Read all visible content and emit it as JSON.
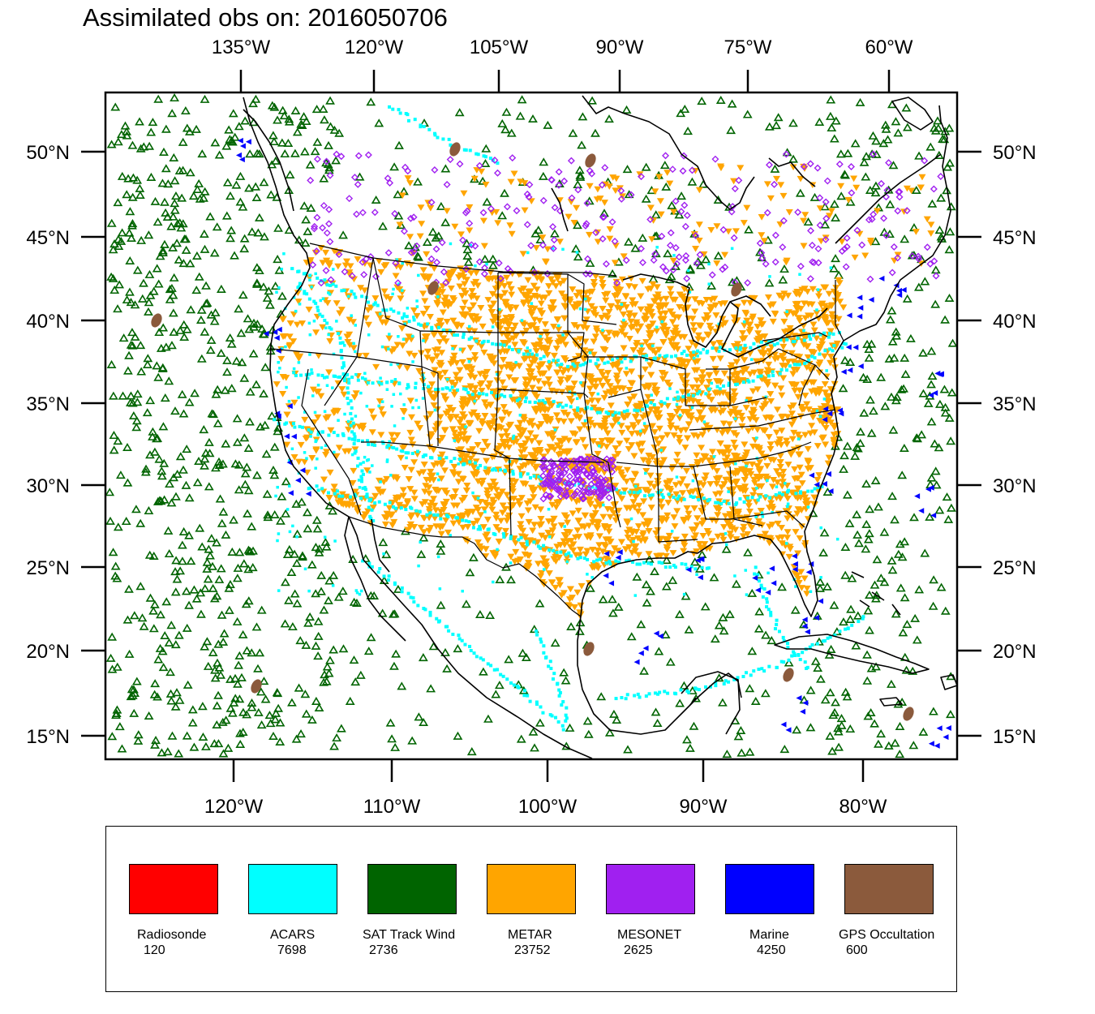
{
  "title": "Assimilated obs on: 2016050706",
  "axes": {
    "top_lon_labels": [
      "135°W",
      "120°W",
      "105°W",
      "90°W",
      "75°W",
      "60°W"
    ],
    "bottom_lon_labels": [
      "120°W",
      "110°W",
      "100°W",
      "90°W",
      "80°W"
    ],
    "lat_labels": [
      "50°N",
      "45°N",
      "40°N",
      "35°N",
      "30°N",
      "25°N",
      "20°N",
      "15°N"
    ]
  },
  "legend": [
    {
      "name": "Radiosonde",
      "count": "120",
      "color": "#ff0000"
    },
    {
      "name": "ACARS",
      "count": "7698",
      "color": "#00ffff"
    },
    {
      "name": "SAT Track Wind",
      "count": "2736",
      "color": "#006400"
    },
    {
      "name": "METAR",
      "count": "23752",
      "color": "#ffa500"
    },
    {
      "name": "MESONET",
      "count": "2625",
      "color": "#a020f0"
    },
    {
      "name": "Marine",
      "count": "4250",
      "color": "#0000ff"
    },
    {
      "name": "GPS Occultation",
      "count": "600",
      "color": "#8b5a3c"
    }
  ],
  "map": {
    "region": "Continental United States and surrounding waters",
    "lon_range": [
      -127.5,
      -73.5
    ],
    "lat_range": [
      14,
      53
    ]
  }
}
